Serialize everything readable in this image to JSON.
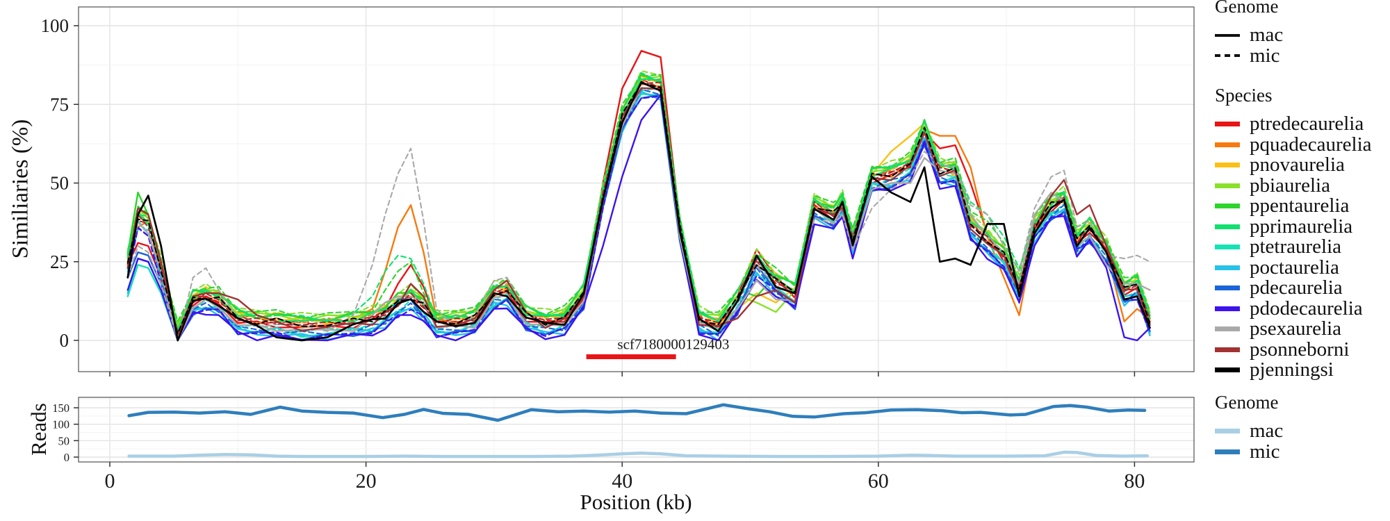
{
  "legends": {
    "genome_title": "Genome",
    "species_title": "Species",
    "reads_title": "Genome"
  },
  "annotation_label": "scf7180000129403",
  "chart_data": [
    {
      "type": "line",
      "ylabel": "Similiaries (%)",
      "ylim": [
        0,
        100
      ],
      "yticks": [
        0,
        25,
        50,
        75,
        100
      ],
      "xlim": [
        -2.4,
        84.6
      ],
      "xticks": [
        0,
        20,
        40,
        60,
        80
      ],
      "grid": "major+minor",
      "legend_position": "right",
      "genomes": [
        {
          "id": "mac",
          "dash": "solid"
        },
        {
          "id": "mic",
          "dash": "dashed"
        }
      ],
      "x": [
        1.4,
        2.2,
        3,
        4,
        5.3,
        6.5,
        7.5,
        8.5,
        10,
        11.5,
        13,
        15,
        17,
        19,
        20.5,
        21.5,
        22.5,
        23.5,
        24.5,
        25.5,
        27,
        28.5,
        30,
        31,
        32.5,
        34,
        35.5,
        37,
        38.5,
        40,
        41.5,
        43,
        44.5,
        46,
        47.5,
        49,
        50.5,
        52,
        53.5,
        55,
        56.5,
        57.2,
        58,
        59.5,
        61,
        62.5,
        63.6,
        64.8,
        66,
        67.2,
        68.5,
        69.8,
        71,
        72.2,
        73.5,
        74.5,
        75.5,
        76.5,
        77.8,
        79.2,
        80.2,
        81.2
      ],
      "base_y": [
        24,
        38,
        36,
        22,
        1,
        12,
        13,
        12,
        6,
        5,
        5,
        4,
        4,
        5,
        6,
        8,
        11,
        13,
        10,
        5,
        5,
        6,
        14,
        15,
        7,
        5,
        6,
        14,
        45,
        70,
        81,
        80,
        35,
        6,
        4,
        12,
        24,
        18,
        14,
        42,
        39,
        43,
        31,
        51,
        52,
        55,
        66,
        53,
        53,
        36,
        31,
        26,
        16,
        35,
        42,
        44,
        31,
        35,
        28,
        15,
        17,
        5
      ],
      "species": [
        {
          "name": "ptredecaurelia",
          "color": "#e81416",
          "off": 0,
          "dev_mac": {
            "2.2": 31,
            "3": 30,
            "4": 20,
            "21.5": 10,
            "22.5": 18,
            "23.5": 24,
            "24.5": 17,
            "25.5": 6,
            "38.5": 50,
            "40": 80,
            "41.5": 92,
            "43": 90,
            "44.5": 38,
            "49": 14,
            "50.5": 29,
            "52": 20,
            "63.6": 66,
            "64.8": 61,
            "66": 62,
            "67.2": 50,
            "68.5": 34
          }
        },
        {
          "name": "pquadecaurelia",
          "color": "#f8790d",
          "off": 1,
          "dev_mac": {
            "2.2": 36,
            "20.5": 10,
            "21.5": 22,
            "22.5": 36,
            "23.5": 43,
            "24.5": 28,
            "25.5": 7,
            "62.5": 57,
            "63.6": 67,
            "64.8": 65,
            "66": 65,
            "67.2": 55,
            "68.5": 33,
            "69.8": 20,
            "71": 8,
            "72.2": 33,
            "79.2": 6,
            "80.2": 10,
            "81.2": 7
          }
        },
        {
          "name": "pnovaurelia",
          "color": "#fcc015",
          "off": 2,
          "dev_mac": {
            "7.5": 17,
            "49": 10,
            "50.5": 15,
            "52": 12,
            "61": 60,
            "62.5": 65,
            "63.6": 69,
            "64.8": 56,
            "66": 52
          }
        },
        {
          "name": "pbiaurelia",
          "color": "#8ae02a",
          "off": 3,
          "dev_mac": {
            "50.5": 12,
            "52": 9
          }
        },
        {
          "name": "ppentaurelia",
          "color": "#2cd42c",
          "off": 3,
          "dev_mac": {
            "2.2": 47,
            "50.5": 14
          },
          "dev_mic": {
            "21.5": 16,
            "22.5": 22,
            "23.5": 25,
            "24.5": 15,
            "67.2": 41,
            "68.5": 38,
            "69.8": 31,
            "71": 22
          }
        },
        {
          "name": "pprimaurelia",
          "color": "#10e06e",
          "off": 2,
          "dev_mic": {
            "20.5": 14,
            "21.5": 22,
            "22.5": 27,
            "23.5": 26,
            "24.5": 18,
            "25.5": 7,
            "67.2": 44,
            "68.5": 40,
            "69.8": 33,
            "71": 23
          }
        },
        {
          "name": "ptetraurelia",
          "color": "#15e3b4",
          "off": -2,
          "dev_mac": {
            "1.4": 14,
            "2.2": 24,
            "3": 23,
            "4": 15
          }
        },
        {
          "name": "poctaurelia",
          "color": "#26c2e9",
          "off": -3,
          "dev_mac": {
            "1.4": 15,
            "2.2": 26,
            "3": 25,
            "4": 16
          },
          "dev_mic": {
            "50.5": 26
          }
        },
        {
          "name": "pdecaurelia",
          "color": "#1b64da",
          "off": -3,
          "dev_mac": {
            "1.4": 20,
            "2.2": 28,
            "3": 27,
            "4": 18,
            "22.5": 13,
            "23.5": 13,
            "50.5": 24
          }
        },
        {
          "name": "pdodecaurelia",
          "color": "#3c13ee",
          "off": -4,
          "dev_mac": {
            "1.4": 16,
            "2.2": 26,
            "3": 25,
            "4": 16,
            "38.5": 30,
            "40": 52,
            "41.5": 70,
            "43": 78,
            "44.5": 33,
            "79.2": 1,
            "80.2": 0,
            "81.2": 4
          }
        },
        {
          "name": "psexaurelia",
          "color": "#a9a9a9",
          "off": -1,
          "dev_mac": {
            "20.5": 8,
            "21.5": 12,
            "22.5": 14,
            "23.5": 14,
            "24.5": 12,
            "25.5": 4,
            "49": 10,
            "50.5": 19,
            "52": 13,
            "58": 29,
            "59.5": 48,
            "61": 50,
            "62.5": 50,
            "63.6": 58,
            "64.8": 54,
            "66": 53,
            "67.2": 40,
            "68.5": 33,
            "69.8": 28,
            "71": 18,
            "72.2": 40,
            "73.5": 47,
            "74.5": 44,
            "75.5": 30,
            "76.5": 33,
            "77.8": 24,
            "79.2": 18,
            "80.2": 18,
            "81.2": 16
          },
          "dev_mic": {
            "1.4": 20,
            "2.2": 30,
            "3": 28,
            "4": 18,
            "6.5": 20,
            "7.5": 23,
            "8.5": 16,
            "19": 8,
            "20.5": 24,
            "21.5": 40,
            "22.5": 53,
            "23.5": 61,
            "24.5": 38,
            "25.5": 10,
            "28.5": 8,
            "30": 19,
            "31": 20,
            "32.5": 9,
            "55": 39,
            "56.5": 37,
            "57.2": 40,
            "58": 29,
            "59.5": 42,
            "61": 48,
            "62.5": 52,
            "63.6": 60,
            "64.8": 56,
            "66": 55,
            "67.2": 43,
            "68.5": 40,
            "69.8": 30,
            "71": 22,
            "72.2": 42,
            "73.5": 52,
            "74.5": 54,
            "75.5": 36,
            "76.5": 38,
            "77.8": 27,
            "79.2": 26,
            "80.2": 27,
            "81.2": 25
          }
        },
        {
          "name": "psonneborni",
          "color": "#a23232",
          "off": 0,
          "dev_mac": {
            "2.2": 42,
            "3": 40,
            "4": 25,
            "6.5": 14,
            "7.5": 15,
            "8.5": 15,
            "10": 13,
            "11.5": 8,
            "13": 6,
            "23.5": 18,
            "24.5": 14,
            "30": 16,
            "31": 19,
            "32.5": 9,
            "49": 7,
            "50.5": 14,
            "52": 16,
            "53.5": 12,
            "73.5": 46,
            "74.5": 51,
            "75.5": 40,
            "76.5": 43,
            "77.8": 30
          }
        },
        {
          "name": "pjenningsi",
          "color": "#000000",
          "off": 0,
          "dev_mac": {
            "1.4": 20,
            "2.2": 40,
            "3": 46,
            "4": 30,
            "13": 1,
            "15": 0,
            "17": 1,
            "50.5": 27,
            "59.5": 52,
            "61": 47,
            "62.5": 44,
            "63.6": 55,
            "64.8": 25,
            "66": 26,
            "67.2": 24,
            "68.5": 37,
            "69.8": 37,
            "71": 14,
            "79.2": 13,
            "80.2": 14,
            "81.2": 4
          }
        }
      ],
      "annotation": {
        "text": "scf7180000129403",
        "color": "#e81416",
        "bar_x": [
          37.2,
          44.2
        ],
        "bar_y": -5.2,
        "text_x": 44,
        "text_y": -1
      }
    },
    {
      "type": "line",
      "ylabel": "Reads",
      "xlabel": "Position (kb)",
      "ylim": [
        0,
        175
      ],
      "yticks": [
        0,
        50,
        100,
        150
      ],
      "xticks": [
        0,
        20,
        40,
        60,
        80
      ],
      "series": [
        {
          "name": "mac",
          "color": "#a9cfe5",
          "x": [
            1.5,
            3,
            5,
            7,
            9,
            11,
            13,
            15,
            17,
            20,
            23,
            26,
            30,
            33,
            36,
            38,
            40,
            41.5,
            43,
            45,
            48,
            52,
            56,
            60,
            62.5,
            64,
            66,
            70,
            73,
            74.5,
            75.5,
            77,
            79,
            81
          ],
          "y": [
            3,
            3,
            3,
            6,
            8,
            7,
            3,
            2,
            2,
            2,
            3,
            2,
            2,
            2,
            3,
            6,
            10,
            12,
            10,
            4,
            3,
            2,
            2,
            3,
            6,
            5,
            3,
            3,
            4,
            15,
            14,
            5,
            3,
            4
          ]
        },
        {
          "name": "mic",
          "color": "#2e7ebc",
          "x": [
            1.5,
            3,
            5,
            7,
            9,
            11,
            13.3,
            15,
            17,
            19,
            21.3,
            23,
            24.5,
            26,
            28,
            30.3,
            32.9,
            35,
            37,
            39,
            41,
            43,
            45,
            47.9,
            50,
            51.5,
            53.3,
            55,
            57.3,
            59,
            61,
            63,
            65,
            66.5,
            68,
            70.3,
            71.5,
            73.7,
            75,
            76.3,
            78,
            79.5,
            80.8
          ],
          "y": [
            126,
            136,
            137,
            134,
            138,
            130,
            152,
            140,
            136,
            134,
            120,
            130,
            145,
            133,
            130,
            112,
            144,
            138,
            140,
            137,
            140,
            134,
            132,
            159,
            146,
            138,
            124,
            122,
            132,
            135,
            143,
            144,
            141,
            135,
            136,
            128,
            130,
            154,
            157,
            152,
            140,
            143,
            142
          ]
        }
      ]
    }
  ]
}
